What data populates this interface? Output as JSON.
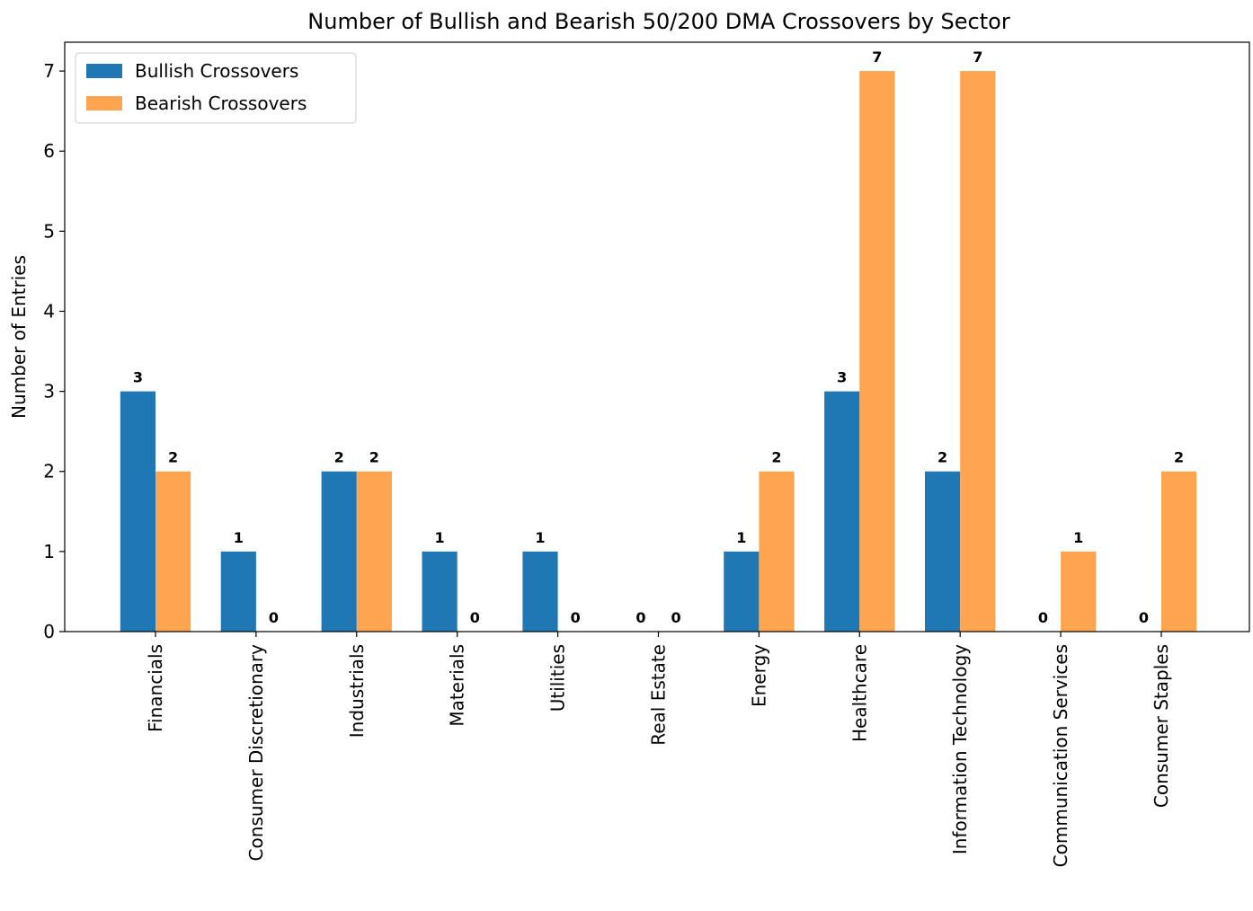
{
  "chart_data": {
    "type": "bar",
    "title": "Number of Bullish and Bearish 50/200 DMA Crossovers by Sector",
    "y_label": "Number of Entries",
    "categories": [
      "Financials",
      "Consumer Discretionary",
      "Industrials",
      "Materials",
      "Utilities",
      "Real Estate",
      "Energy",
      "Healthcare",
      "Information Technology",
      "Communication Services",
      "Consumer Staples"
    ],
    "series": [
      {
        "name": "Bullish Crossovers",
        "color": "#1f77b4",
        "values": [
          3,
          1,
          2,
          1,
          1,
          0,
          1,
          3,
          2,
          0,
          0
        ]
      },
      {
        "name": "Bearish Crossovers",
        "color": "#ffa552",
        "values": [
          2,
          0,
          2,
          0,
          0,
          0,
          2,
          7,
          7,
          1,
          2
        ]
      }
    ],
    "ylim": [
      0,
      7.36
    ],
    "yticks": [
      0,
      1,
      2,
      3,
      4,
      5,
      6,
      7
    ],
    "legend": "upper left",
    "grid": false
  }
}
